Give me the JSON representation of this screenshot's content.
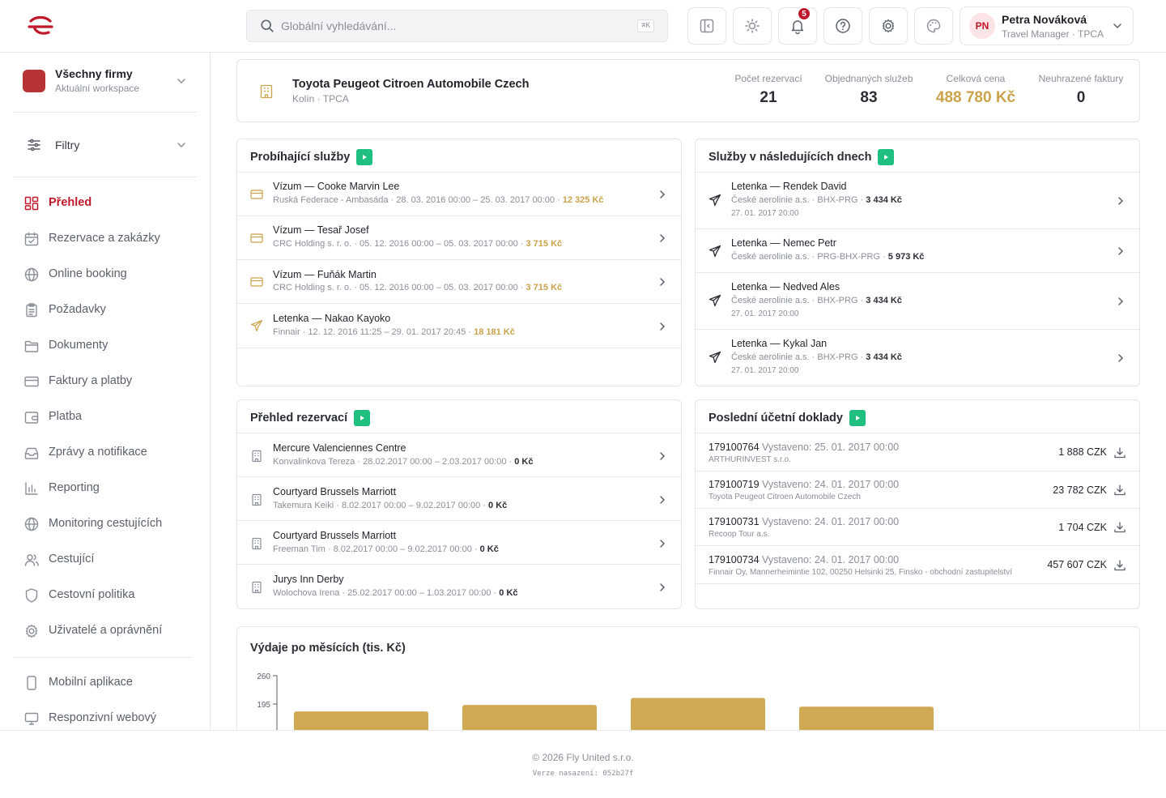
{
  "search": {
    "placeholder": "Globální vyhledávání...",
    "shortcut": "⌘K"
  },
  "notifications": {
    "count": "5"
  },
  "user": {
    "initials": "PN",
    "name": "Petra Nováková",
    "role": "Travel Manager · TPCA"
  },
  "workspace": {
    "name": "Všechny firmy",
    "subtitle": "Aktuální workspace"
  },
  "filters": {
    "label": "Filtry"
  },
  "nav": [
    {
      "label": "Přehled",
      "icon": "dashboard-icon",
      "active": true
    },
    {
      "label": "Rezervace a zakázky",
      "icon": "calendar-check-icon"
    },
    {
      "label": "Online booking",
      "icon": "globe-icon"
    },
    {
      "label": "Požadavky",
      "icon": "clipboard-icon"
    },
    {
      "label": "Dokumenty",
      "icon": "folder-icon"
    },
    {
      "label": "Faktury a platby",
      "icon": "credit-card-icon"
    },
    {
      "label": "Platba",
      "icon": "wallet-icon"
    },
    {
      "label": "Zprávy a notifikace",
      "icon": "inbox-icon"
    },
    {
      "label": "Reporting",
      "icon": "bar-chart-icon"
    },
    {
      "label": "Monitoring cestujících",
      "icon": "globe-icon"
    },
    {
      "label": "Cestující",
      "icon": "users-icon"
    },
    {
      "label": "Cestovní politika",
      "icon": "shield-icon"
    },
    {
      "label": "Uživatelé a oprávnění",
      "icon": "gear-icon"
    }
  ],
  "nav2": [
    {
      "label": "Mobilní aplikace",
      "icon": "phone-icon"
    },
    {
      "label": "Responzivní webový",
      "icon": "monitor-icon"
    }
  ],
  "company": {
    "name": "Toyota Peugeot Citroen Automobile Czech",
    "location": "Kolín · TPCA",
    "stats": [
      {
        "label": "Počet rezervací",
        "value": "21"
      },
      {
        "label": "Objednaných služeb",
        "value": "83"
      },
      {
        "label": "Celková cena",
        "value": "488 780 Kč"
      },
      {
        "label": "Neuhrazené faktury",
        "value": "0"
      }
    ]
  },
  "running": {
    "title": "Probíhající služby",
    "items": [
      {
        "icon": "card-icon",
        "title": "Vízum — Cooke Marvin Lee",
        "meta": "Ruská Federace - Ambasáda · 28. 03. 2016 00:00 – 25. 03. 2017 00:00 · ",
        "price": "12 325 Kč"
      },
      {
        "icon": "card-icon",
        "title": "Vízum — Tesař Josef",
        "meta": "CRC Holding s. r. o. · 05. 12. 2016 00:00 – 05. 03. 2017 00:00 · ",
        "price": "3 715 Kč"
      },
      {
        "icon": "card-icon",
        "title": "Vízum — Fuňák Martin",
        "meta": "CRC Holding s. r. o. · 05. 12. 2016 00:00 – 05. 03. 2017 00:00 · ",
        "price": "3 715 Kč"
      },
      {
        "icon": "plane-icon",
        "title": "Letenka — Nakao Kayoko",
        "meta": "Finnair · 12. 12. 2016 11:25 – 29. 01. 2017 20:45 · ",
        "price": "18 181 Kč"
      }
    ]
  },
  "upcoming": {
    "title": "Služby v následujících dnech",
    "items": [
      {
        "title": "Letenka — Rendek David",
        "meta": "České aerolinie a.s. · BHX-PRG · ",
        "price": "3 434 Kč",
        "date": "27. 01. 2017 20:00"
      },
      {
        "title": "Letenka — Nemec Petr",
        "meta": "České aerolinie a.s. · PRG-BHX-PRG · ",
        "price": "5 973 Kč",
        "date": ""
      },
      {
        "title": "Letenka — Nedved Ales",
        "meta": "České aerolinie a.s. · BHX-PRG · ",
        "price": "3 434 Kč",
        "date": "27. 01. 2017 20:00"
      },
      {
        "title": "Letenka — Kykal Jan",
        "meta": "České aerolinie a.s. · BHX-PRG · ",
        "price": "3 434 Kč",
        "date": "27. 01. 2017 20:00"
      }
    ]
  },
  "bookings": {
    "title": "Přehled rezervací",
    "items": [
      {
        "title": "Mercure Valenciennes Centre",
        "meta": "Konvalinkova Tereza · 28.02.2017 00:00 – 2.03.2017 00:00 · ",
        "price": "0 Kč"
      },
      {
        "title": "Courtyard Brussels Marriott",
        "meta": "Takemura Keiki · 8.02.2017 00:00 – 9.02.2017 00:00 · ",
        "price": "0 Kč"
      },
      {
        "title": "Courtyard Brussels Marriott",
        "meta": "Freeman Tim · 8.02.2017 00:00 – 9.02.2017 00:00 · ",
        "price": "0 Kč"
      },
      {
        "title": "Jurys Inn Derby",
        "meta": "Wolochova Irena · 25.02.2017 00:00 – 1.03.2017 00:00 · ",
        "price": "0 Kč"
      }
    ]
  },
  "invoices": {
    "title": "Poslední účetní doklady",
    "items": [
      {
        "number": "179100764",
        "issued": "Vystaveno: 25. 01. 2017 00:00",
        "company": "ARTHURINVEST s.r.o.",
        "amount": "1 888 CZK"
      },
      {
        "number": "179100719",
        "issued": "Vystaveno: 24. 01. 2017 00:00",
        "company": "Toyota Peugeot Citroen Automobile Czech",
        "amount": "23 782 CZK"
      },
      {
        "number": "179100731",
        "issued": "Vystaveno: 24. 01. 2017 00:00",
        "company": "Recoop Tour a.s.",
        "amount": "1 704 CZK"
      },
      {
        "number": "179100734",
        "issued": "Vystaveno: 24. 01. 2017 00:00",
        "company": "Finnair Oy, Mannerheimintie 102, 00250 Helsinki 25, Finsko - obchodní zastupitelství",
        "amount": "457 607 CZK"
      }
    ]
  },
  "chart_data": {
    "type": "bar",
    "title": "Výdaje po měsících (tis. Kč)",
    "xlabel": "",
    "ylabel": "",
    "yticks": [
      260,
      195
    ],
    "categories": [
      "",
      "",
      "",
      ""
    ],
    "values": [
      178,
      193,
      209,
      189
    ],
    "color": "#cfa954"
  },
  "footer": {
    "copyright": "© 2026 Fly United s.r.o.",
    "version": "Verze nasazení: 052b27f"
  },
  "colors": {
    "accent": "#c0182a",
    "gold": "#caa24a",
    "green": "#1fbf7f"
  }
}
